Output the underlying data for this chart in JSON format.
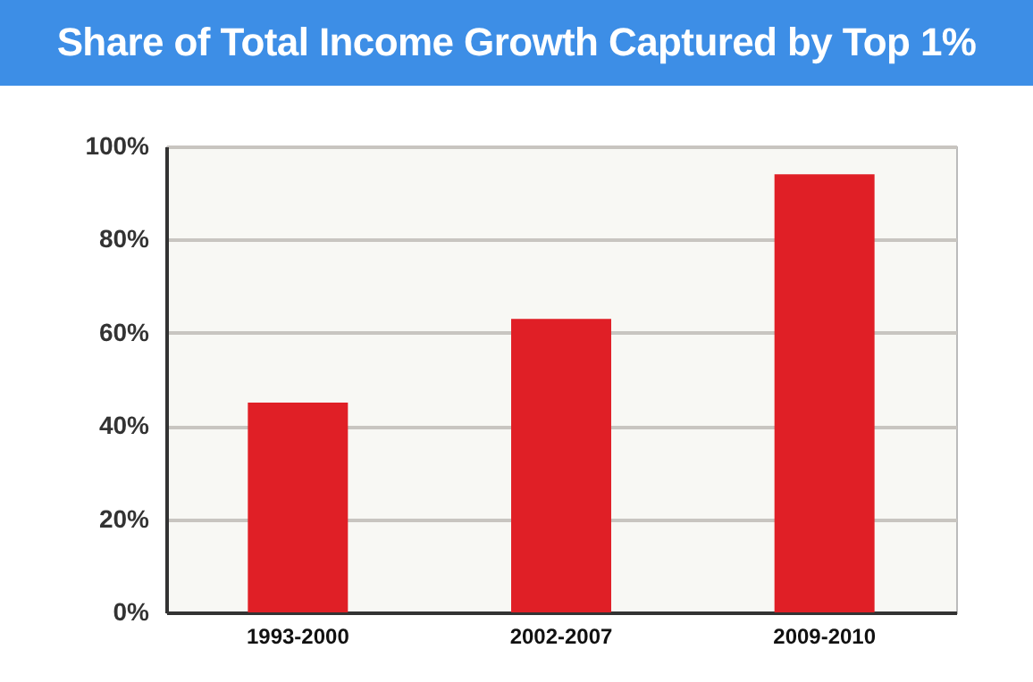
{
  "chart_data": {
    "type": "bar",
    "title": "Share of Total Income Growth Captured by Top 1%",
    "categories": [
      "1993-2000",
      "2002-2007",
      "2009-2010"
    ],
    "values": [
      45,
      63,
      94
    ],
    "color": "#e01f26",
    "ylim": [
      0,
      100
    ],
    "yticks": [
      {
        "value": 0,
        "label": "0%"
      },
      {
        "value": 20,
        "label": "20%"
      },
      {
        "value": 40,
        "label": "40%"
      },
      {
        "value": 60,
        "label": "60%"
      },
      {
        "value": 80,
        "label": "80%"
      },
      {
        "value": 100,
        "label": "100%"
      }
    ],
    "grid": "y"
  }
}
